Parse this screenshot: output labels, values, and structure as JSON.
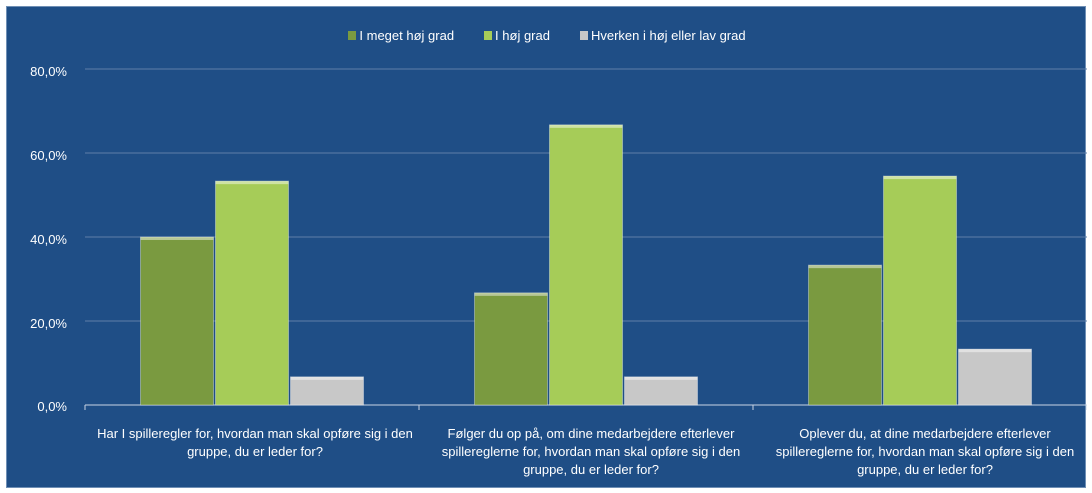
{
  "colors": {
    "background": "#1f4e86",
    "series": [
      "#7a9a40",
      "#a6cc58",
      "#c8c8c8"
    ]
  },
  "chart_data": {
    "type": "bar",
    "title": "",
    "xlabel": "",
    "ylabel": "",
    "ylim": [
      0,
      80
    ],
    "y_ticks": [
      "0,0%",
      "20,0%",
      "40,0%",
      "60,0%",
      "80,0%"
    ],
    "y_tick_values": [
      0,
      20,
      40,
      60,
      80
    ],
    "legend_position": "top",
    "grid": true,
    "categories": [
      "Har I spilleregler for, hvordan man skal opføre sig i den gruppe, du er leder for?",
      "Følger du op på, om dine medarbejdere efterlever spillereglerne for, hvordan man skal opføre sig i den gruppe, du er leder for?",
      "Oplever du, at dine medarbejdere efterlever spillereglerne for, hvordan man skal opføre sig i den gruppe, du er leder for?"
    ],
    "series": [
      {
        "name": "I meget høj grad",
        "values": [
          40.0,
          26.7,
          33.3
        ]
      },
      {
        "name": "I høj grad",
        "values": [
          53.3,
          66.7,
          54.5
        ]
      },
      {
        "name": "Hverken i høj eller lav grad",
        "values": [
          6.7,
          6.7,
          13.3
        ]
      }
    ]
  }
}
